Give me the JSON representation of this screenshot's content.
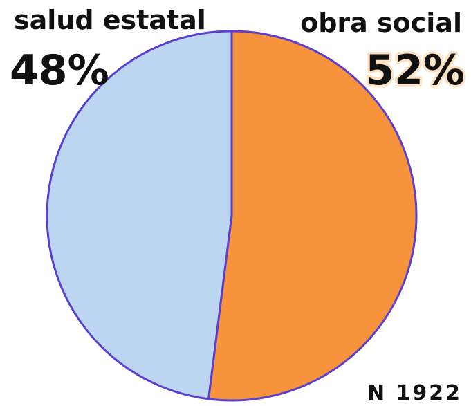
{
  "chart_data": {
    "type": "pie",
    "categories": [
      "salud estatal",
      "obra social"
    ],
    "values": [
      48,
      52
    ],
    "value_labels": [
      "48%",
      "52%"
    ],
    "colors": [
      "#bcd6f2",
      "#f7933c"
    ],
    "edge_color": "#5a3fd0",
    "annotation": "N 1922"
  }
}
